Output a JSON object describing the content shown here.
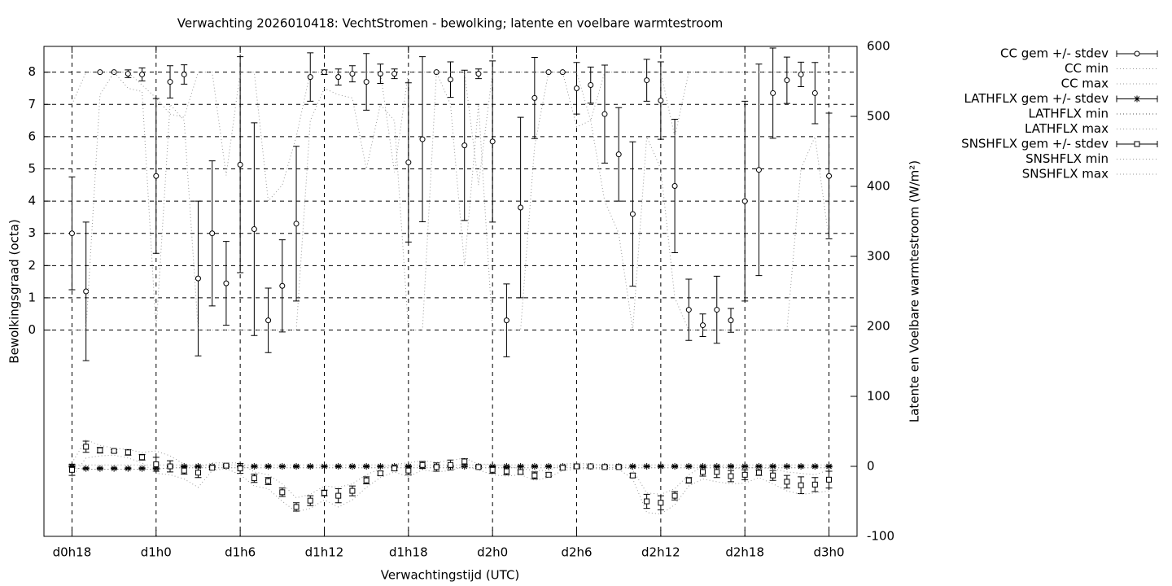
{
  "chart_data": {
    "type": "errorbar",
    "title": "Verwachting 2026010418: VechtStromen - bewolking; latente en voelbare warmtestroom",
    "x_label": "Verwachtingstijd (UTC)",
    "y_label": "Bewolkingsgraad (octa)",
    "y2_label": "Latente en Voelbare warmtestroom (W/m²)",
    "x": [
      18,
      19,
      20,
      21,
      22,
      23,
      24,
      25,
      26,
      27,
      28,
      29,
      30,
      31,
      32,
      33,
      34,
      35,
      36,
      37,
      38,
      39,
      40,
      41,
      42,
      43,
      44,
      45,
      46,
      47,
      48,
      49,
      50,
      51,
      52,
      53,
      54,
      55,
      56,
      57,
      58,
      59,
      60,
      61,
      62,
      63,
      64,
      65,
      66,
      67,
      68,
      69,
      70,
      71,
      72
    ],
    "xlim": [
      16,
      74
    ],
    "xticks": [
      {
        "value": 18,
        "label": "d0h18"
      },
      {
        "value": 24,
        "label": "d1h0"
      },
      {
        "value": 30,
        "label": "d1h6"
      },
      {
        "value": 36,
        "label": "d1h12"
      },
      {
        "value": 42,
        "label": "d1h18"
      },
      {
        "value": 48,
        "label": "d2h0"
      },
      {
        "value": 54,
        "label": "d2h6"
      },
      {
        "value": 60,
        "label": "d2h12"
      },
      {
        "value": 66,
        "label": "d2h18"
      },
      {
        "value": 72,
        "label": "d3h0"
      }
    ],
    "ylim": [
      -6.4,
      8.8
    ],
    "yticks": [
      0,
      1,
      2,
      3,
      4,
      5,
      6,
      7,
      8
    ],
    "y2lim": [
      -100,
      600
    ],
    "y2ticks": [
      -100,
      0,
      100,
      200,
      300,
      400,
      500,
      600
    ],
    "grid": true,
    "legend": "outside-right",
    "series": [
      {
        "name": "CC gem +/- stdev",
        "axis": "y",
        "style": "errorbars",
        "marker": "circle",
        "color": "#000000",
        "values": [
          3.0,
          1.2,
          8.0,
          8.0,
          7.95,
          7.93,
          4.78,
          7.7,
          7.93,
          1.6,
          3.0,
          1.45,
          5.13,
          3.13,
          0.3,
          1.37,
          3.3,
          7.85,
          8.0,
          7.85,
          7.95,
          7.7,
          7.95,
          7.95,
          5.2,
          5.92,
          8.0,
          7.77,
          5.73,
          7.95,
          5.85,
          0.3,
          3.8,
          7.2,
          8.0,
          8.0,
          7.5,
          7.6,
          6.7,
          5.45,
          3.6,
          7.75,
          7.12,
          4.47,
          0.63,
          0.15,
          0.63,
          0.3,
          4.0,
          4.97,
          7.35,
          7.75,
          7.93,
          7.35,
          4.78
        ],
        "errors": [
          1.75,
          2.15,
          0,
          0,
          0.12,
          0.2,
          2.4,
          0.5,
          0.3,
          2.4,
          2.25,
          1.3,
          3.35,
          3.3,
          1.0,
          1.43,
          2.4,
          0.75,
          0.07,
          0.25,
          0.25,
          0.88,
          0.3,
          0.15,
          2.47,
          2.56,
          0,
          0.55,
          2.33,
          0.15,
          2.5,
          1.13,
          2.8,
          1.26,
          0,
          0,
          0.8,
          0.56,
          1.52,
          1.45,
          2.24,
          0.65,
          1.2,
          2.07,
          0.95,
          0.35,
          1.04,
          0.37,
          3.1,
          3.28,
          1.4,
          0.72,
          0.38,
          0.95,
          1.95
        ]
      },
      {
        "name": "CC min",
        "axis": "y",
        "style": "dotted",
        "color": "#999999",
        "values": [
          0,
          0,
          7.3,
          8,
          7.5,
          7.4,
          0,
          7,
          6.5,
          0,
          0,
          0,
          0,
          0,
          0,
          0,
          0,
          6.5,
          7.5,
          7.3,
          7.2,
          5,
          7,
          6.5,
          0,
          0,
          8,
          7,
          2,
          7,
          0,
          0,
          0,
          5.7,
          8,
          8,
          6.3,
          6.5,
          4,
          3,
          0,
          6,
          5,
          1,
          0,
          0,
          0,
          0,
          0,
          0,
          0,
          0,
          5,
          6,
          2.8
        ]
      },
      {
        "name": "CC max",
        "axis": "y",
        "style": "dotted",
        "color": "#999999",
        "values": [
          7,
          8,
          8,
          8,
          8,
          7.6,
          7.2,
          6.7,
          6.6,
          8,
          8,
          4.8,
          8,
          8,
          4,
          4.5,
          6,
          8,
          8,
          8,
          8,
          8,
          8,
          4.9,
          8,
          8,
          8,
          8,
          8,
          4.5,
          8,
          8,
          8,
          8,
          8,
          8,
          8,
          6.5,
          8,
          8,
          8,
          8,
          8,
          6,
          8,
          8,
          8,
          8,
          8,
          8,
          8,
          8,
          8,
          8,
          8
        ]
      },
      {
        "name": "LATHFLX gem +/- stdev",
        "axis": "y2",
        "style": "errorbars",
        "marker": "star",
        "color": "#000000",
        "values": [
          0,
          -3,
          -3,
          -3,
          -3,
          -3,
          -3,
          0,
          0,
          0,
          0,
          0,
          0,
          0,
          0,
          0,
          0,
          0,
          0,
          0,
          0,
          0,
          0,
          0,
          0,
          0,
          0,
          0,
          0,
          0,
          0,
          0,
          0,
          0,
          0,
          0,
          0,
          0,
          0,
          0,
          0,
          0,
          0,
          0,
          0,
          0,
          0,
          0,
          0,
          0,
          0,
          0,
          0,
          0,
          0
        ],
        "errors": [
          1,
          1,
          1,
          1,
          1,
          1,
          1,
          1,
          1,
          1,
          1,
          1,
          1,
          1,
          1,
          1,
          1,
          1,
          1,
          1,
          1,
          1,
          1,
          1,
          1,
          1,
          1,
          1,
          1,
          1,
          1,
          1,
          1,
          1,
          1,
          1,
          1,
          1,
          1,
          1,
          1,
          1,
          1,
          1,
          1,
          1,
          1,
          1,
          1,
          1,
          1,
          1,
          1,
          1,
          1
        ]
      },
      {
        "name": "LATHFLX min",
        "axis": "y2",
        "style": "dotted",
        "color": "#555555",
        "values": [
          -2,
          -4,
          -4,
          -4,
          -4,
          -4,
          -4,
          -2,
          -2,
          -2,
          -2,
          -2,
          -2,
          -2,
          -2,
          -2,
          -2,
          -2,
          -2,
          -2,
          -2,
          -2,
          -2,
          -2,
          -2,
          -2,
          -2,
          -2,
          -2,
          -2,
          -2,
          -2,
          -2,
          -2,
          -2,
          -2,
          -2,
          -2,
          -2,
          -2,
          -2,
          -2,
          -2,
          -2,
          -2,
          -2,
          -2,
          -2,
          -2,
          -2,
          -2,
          -2,
          -2,
          -2,
          -2
        ]
      },
      {
        "name": "LATHFLX max",
        "axis": "y2",
        "style": "dotted",
        "color": "#999999",
        "values": [
          2,
          2,
          2,
          2,
          2,
          2,
          2,
          2,
          2,
          2,
          2,
          2,
          2,
          2,
          2,
          2,
          2,
          2,
          2,
          2,
          2,
          2,
          2,
          2,
          2,
          2,
          2,
          2,
          2,
          2,
          2,
          2,
          2,
          2,
          2,
          2,
          2,
          2,
          2,
          2,
          2,
          2,
          2,
          2,
          2,
          2,
          2,
          2,
          2,
          2,
          2,
          2,
          2,
          2,
          2
        ]
      },
      {
        "name": "SNSHFLX gem +/- stdev",
        "axis": "y2",
        "style": "errorbars",
        "marker": "square",
        "color": "#000000",
        "values": [
          -5,
          28,
          23,
          22,
          20,
          13,
          3,
          0,
          -6,
          -9,
          -2,
          1,
          -3,
          -17,
          -21,
          -37,
          -58,
          -49,
          -38,
          -42,
          -35,
          -20,
          -10,
          -3,
          -6,
          2,
          -1,
          2,
          7,
          -1,
          -5,
          -7,
          -8,
          -13,
          -12,
          -2,
          0,
          0,
          -1,
          -1,
          -13,
          -50,
          -52,
          -42,
          -20,
          -8,
          -8,
          -14,
          -12,
          -9,
          -13,
          -22,
          -27,
          -26,
          -19
        ],
        "errors": [
          8,
          8,
          4,
          2,
          4,
          4,
          10,
          8,
          5,
          7,
          2,
          2,
          7,
          6,
          5,
          6,
          6,
          7,
          4,
          10,
          7,
          5,
          3,
          3,
          6,
          5,
          6,
          7,
          4,
          2,
          5,
          5,
          3,
          5,
          3,
          3,
          3,
          2,
          2,
          2,
          3,
          10,
          10,
          6,
          4,
          6,
          8,
          8,
          7,
          4,
          7,
          9,
          12,
          10,
          12
        ]
      },
      {
        "name": "SNSHFLX min",
        "axis": "y2",
        "style": "dotted",
        "color": "#999999",
        "values": [
          -15,
          12,
          15,
          16,
          12,
          5,
          -10,
          -12,
          -18,
          -30,
          -6,
          -3,
          -12,
          -28,
          -32,
          -50,
          -65,
          -60,
          -48,
          -58,
          -48,
          -30,
          -16,
          -8,
          -15,
          -5,
          -8,
          -6,
          0,
          -5,
          -12,
          -14,
          -12,
          -20,
          -16,
          -6,
          -4,
          -3,
          -4,
          -4,
          -18,
          -66,
          -68,
          -55,
          -28,
          -18,
          -22,
          -25,
          -24,
          -16,
          -25,
          -35,
          -40,
          -38,
          -35
        ]
      },
      {
        "name": "SNSHFLX max",
        "axis": "y2",
        "style": "dotted",
        "color": "#999999",
        "values": [
          5,
          38,
          30,
          26,
          24,
          20,
          22,
          15,
          3,
          -2,
          5,
          5,
          5,
          -8,
          -12,
          -25,
          -45,
          -40,
          -28,
          -30,
          -25,
          -12,
          -3,
          3,
          5,
          8,
          6,
          8,
          12,
          3,
          3,
          0,
          -3,
          -6,
          -6,
          3,
          5,
          3,
          2,
          2,
          -5,
          -38,
          -40,
          -32,
          -12,
          0,
          2,
          -3,
          -2,
          -2,
          -3,
          -8,
          -10,
          -12,
          -5
        ]
      }
    ]
  }
}
